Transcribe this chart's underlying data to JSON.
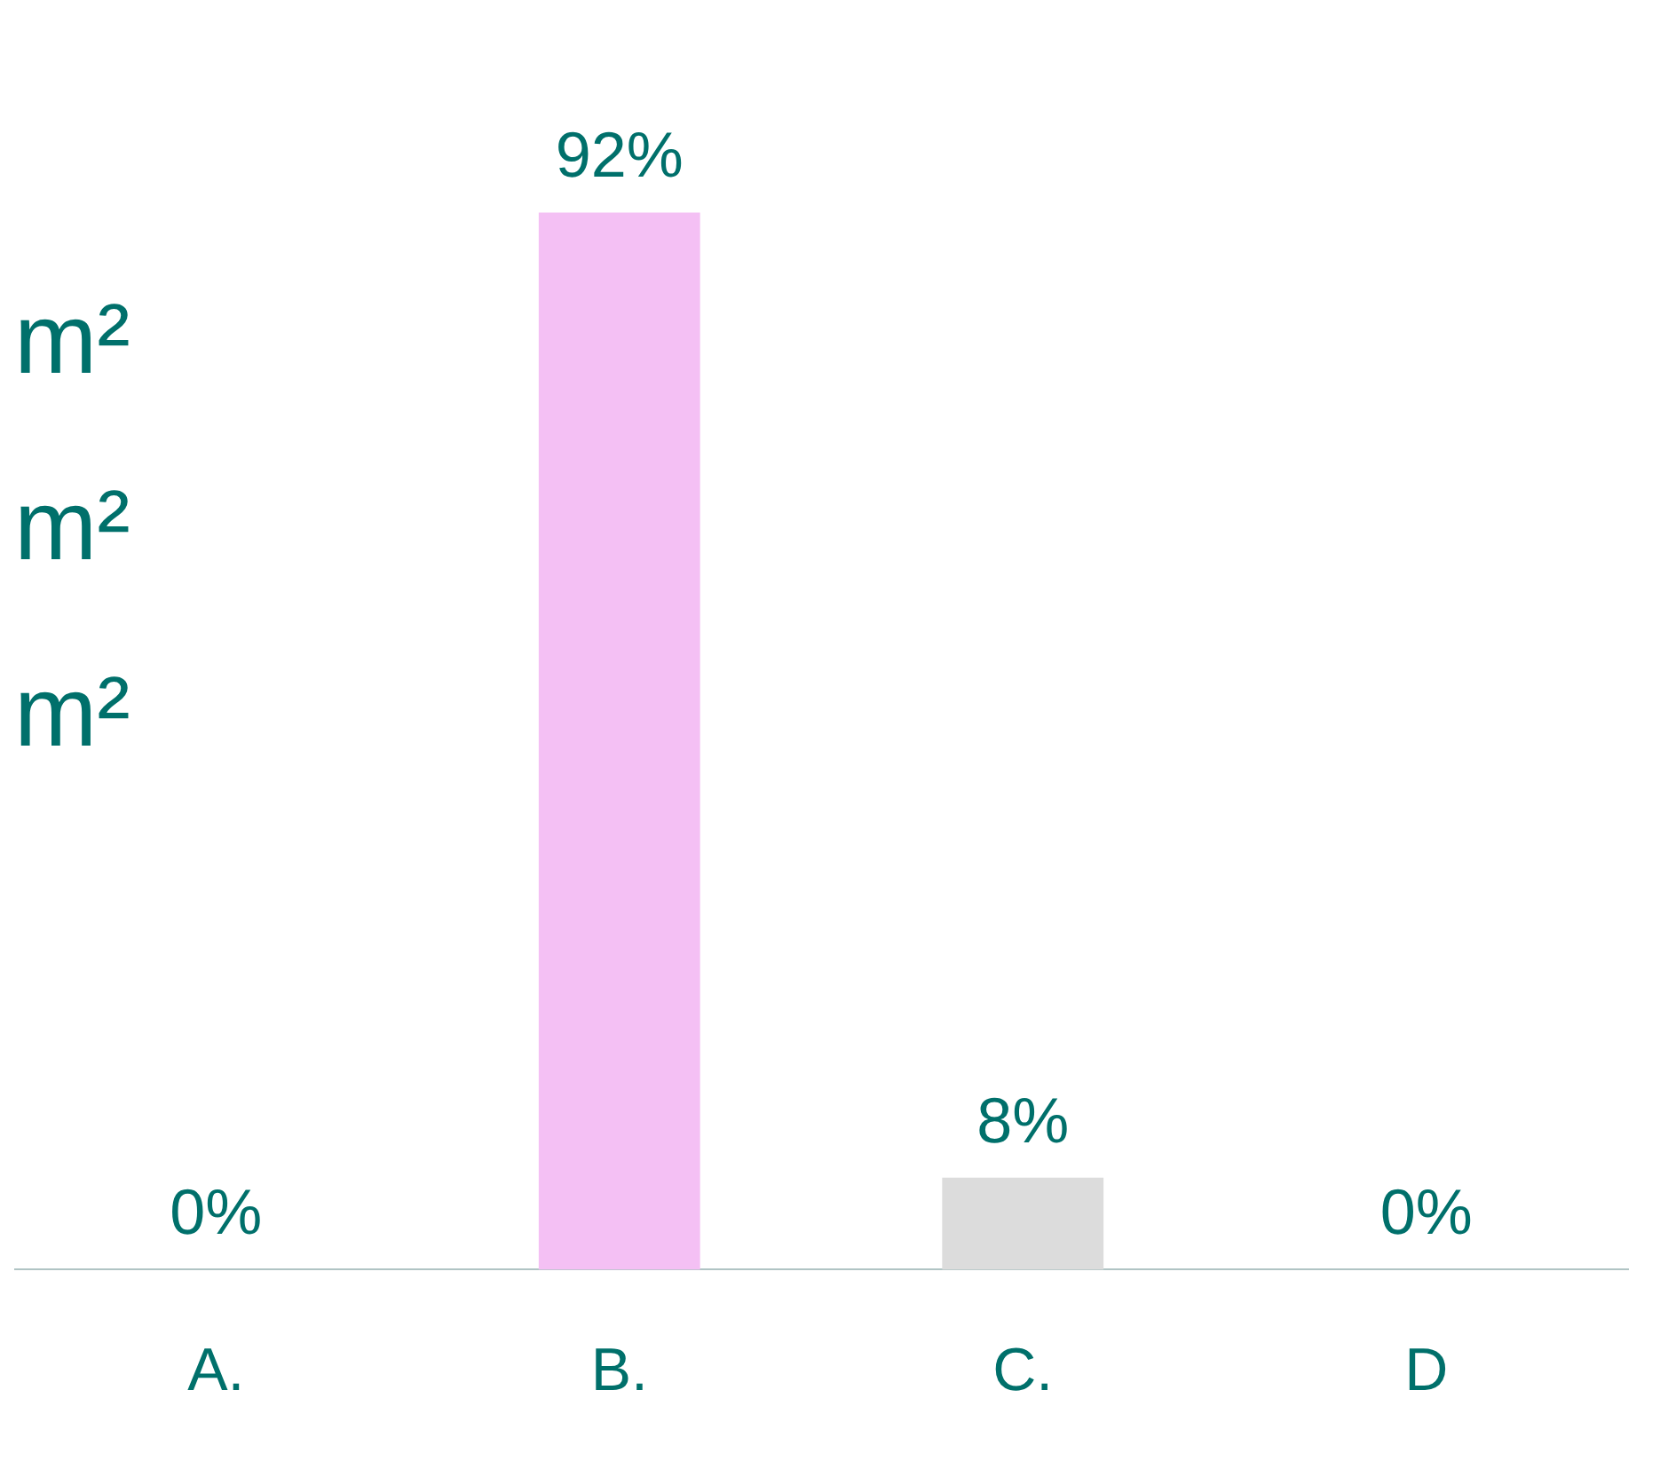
{
  "chart_data": {
    "type": "bar",
    "categories": [
      "A.",
      "B.",
      "C.",
      "D"
    ],
    "values": [
      0,
      92,
      8,
      0
    ],
    "colors": [
      "#c8c49c",
      "#f4c0f4",
      "#dcdcdc",
      "#006666"
    ],
    "value_labels": [
      "0%",
      "92%",
      "8%",
      "0%"
    ],
    "annotations": [
      "m²",
      "m²",
      "m²"
    ],
    "grid": false,
    "legend": false
  }
}
